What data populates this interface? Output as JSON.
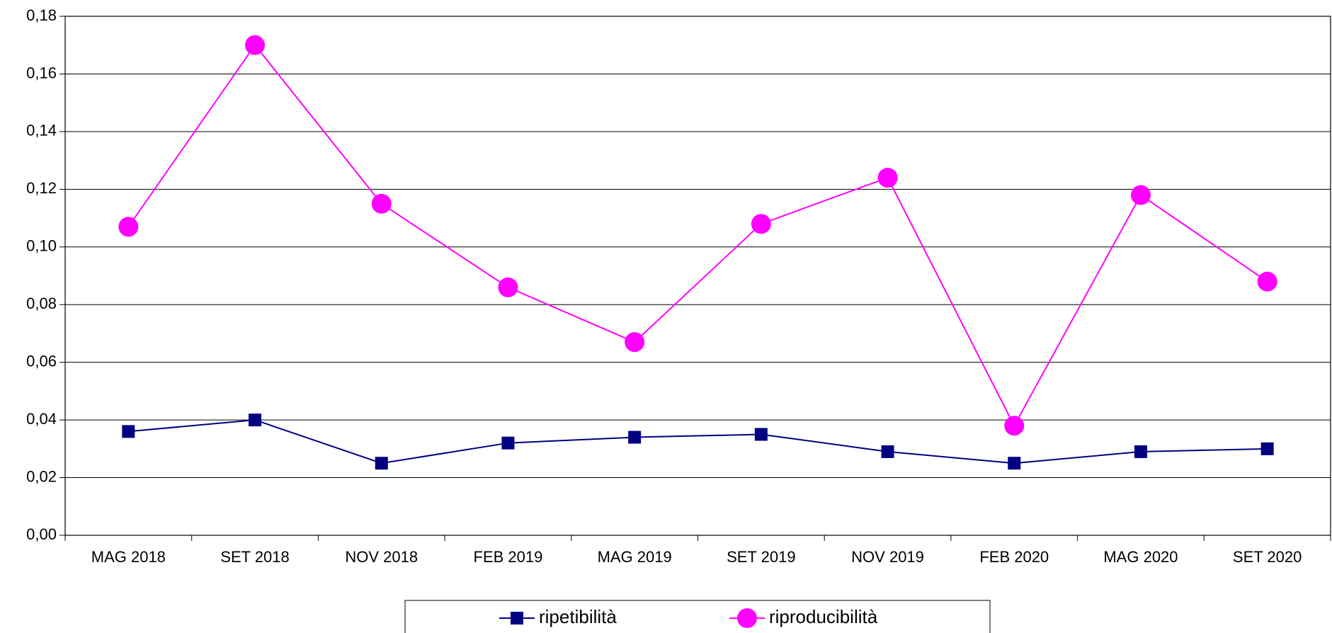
{
  "chart_data": {
    "type": "line",
    "categories": [
      "MAG 2018",
      "SET 2018",
      "NOV 2018",
      "FEB 2019",
      "MAG 2019",
      "SET 2019",
      "NOV 2019",
      "FEB 2020",
      "MAG 2020",
      "SET 2020"
    ],
    "series": [
      {
        "name": "ripetibilità",
        "color": "#000080",
        "marker": "square",
        "values": [
          0.036,
          0.04,
          0.025,
          0.032,
          0.034,
          0.035,
          0.029,
          0.025,
          0.029,
          0.03
        ]
      },
      {
        "name": "riproducibilità",
        "color": "#ff00ff",
        "marker": "circle",
        "values": [
          0.107,
          0.17,
          0.115,
          0.086,
          0.067,
          0.108,
          0.124,
          0.038,
          0.118,
          0.088
        ]
      }
    ],
    "ylim": [
      0,
      0.18
    ],
    "yticks": [
      {
        "value": 0,
        "label": "0,00"
      },
      {
        "value": 0.02,
        "label": "0,02"
      },
      {
        "value": 0.04,
        "label": "0,04"
      },
      {
        "value": 0.06,
        "label": "0,06"
      },
      {
        "value": 0.08,
        "label": "0,08"
      },
      {
        "value": 0.1,
        "label": "0,10"
      },
      {
        "value": 0.12,
        "label": "0,12"
      },
      {
        "value": 0.14,
        "label": "0,14"
      },
      {
        "value": 0.16,
        "label": "0,16"
      },
      {
        "value": 0.18,
        "label": "0,18"
      }
    ],
    "grid": true,
    "legend": "bottom"
  }
}
